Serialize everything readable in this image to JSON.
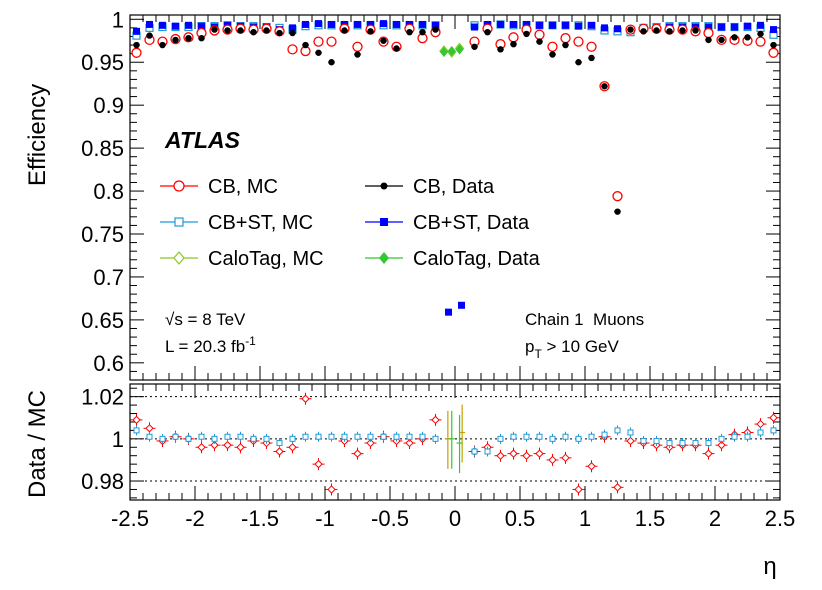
{
  "chart_data": {
    "type": "scatter",
    "title": "",
    "experiment_label": "ATLAS",
    "energy_label": "√s = 8 TeV",
    "lumi_label_main": "L = 20.3 fb",
    "lumi_label_sup": "-1",
    "chain_label": "Chain 1  Muons",
    "pt_label_p": "p",
    "pt_label_sub": "T",
    "pt_label_rest": " > 10 GeV",
    "xlabel": "η",
    "ylabel_top": "Efficiency",
    "ylabel_bottom": "Data / MC",
    "xlim": [
      -2.5,
      2.5
    ],
    "ylim_top": [
      0.58,
      1.005
    ],
    "ylim_bottom": [
      0.971,
      1.026
    ],
    "x_ticks": [
      -2.5,
      -2,
      -1.5,
      -1,
      -0.5,
      0,
      0.5,
      1,
      1.5,
      2,
      2.5
    ],
    "x_tick_labels": [
      "-2.5",
      "-2",
      "-1.5",
      "-1",
      "-0.5",
      "0",
      "0.5",
      "1",
      "1.5",
      "2",
      "2.5"
    ],
    "y_ticks_top": [
      0.6,
      0.65,
      0.7,
      0.75,
      0.8,
      0.85,
      0.9,
      0.95,
      1
    ],
    "y_tick_labels_top": [
      "0.6",
      "0.65",
      "0.7",
      "0.75",
      "0.8",
      "0.85",
      "0.9",
      "0.95",
      "1"
    ],
    "y_ticks_bottom": [
      0.98,
      1,
      1.02
    ],
    "y_tick_labels_bottom": [
      "0.98",
      "1",
      "1.02"
    ],
    "legend": [
      {
        "label": "CB, MC",
        "series": "cb_mc"
      },
      {
        "label": "CB, Data",
        "series": "cb_data"
      },
      {
        "label": "CB+ST, MC",
        "series": "cbst_mc"
      },
      {
        "label": "CB+ST, Data",
        "series": "cbst_data"
      },
      {
        "label": "CaloTag, MC",
        "series": "calo_mc"
      },
      {
        "label": "CaloTag, Data",
        "series": "calo_data"
      }
    ],
    "colors": {
      "cb_mc": "#ff0000",
      "cb_data": "#000000",
      "cbst_mc": "#1e9bd7",
      "cbst_data": "#0000ff",
      "calo_mc": "#8cc81e",
      "calo_data": "#32c832",
      "ratio_cb": "#ff0000",
      "ratio_cbst": "#1e9bd7",
      "ratio_calo_a": "#c8a000",
      "ratio_calo_b": "#32c832"
    },
    "x": [
      -2.45,
      -2.35,
      -2.25,
      -2.15,
      -2.05,
      -1.95,
      -1.85,
      -1.75,
      -1.65,
      -1.55,
      -1.45,
      -1.35,
      -1.25,
      -1.15,
      -1.05,
      -0.95,
      -0.85,
      -0.75,
      -0.65,
      -0.55,
      -0.45,
      -0.35,
      -0.25,
      -0.15,
      0.15,
      0.25,
      0.35,
      0.45,
      0.55,
      0.65,
      0.75,
      0.85,
      0.95,
      1.05,
      1.15,
      1.25,
      1.35,
      1.45,
      1.55,
      1.65,
      1.75,
      1.85,
      1.95,
      2.05,
      2.15,
      2.25,
      2.35,
      2.45
    ],
    "series": [
      {
        "name": "CB, MC",
        "key": "cb_mc",
        "values": [
          0.961,
          0.976,
          0.974,
          0.977,
          0.979,
          0.984,
          0.987,
          0.988,
          0.989,
          0.988,
          0.989,
          0.986,
          0.965,
          0.963,
          0.974,
          0.974,
          0.989,
          0.968,
          0.988,
          0.974,
          0.968,
          0.989,
          0.978,
          0.985,
          0.974,
          0.989,
          0.971,
          0.979,
          0.988,
          0.982,
          0.968,
          0.978,
          0.974,
          0.968,
          0.922,
          0.794,
          0.988,
          0.989,
          0.989,
          0.988,
          0.988,
          0.986,
          0.984,
          0.976,
          0.976,
          0.975,
          0.974,
          0.961
        ]
      },
      {
        "name": "CB, Data",
        "key": "cb_data",
        "values": [
          0.97,
          0.981,
          0.97,
          0.976,
          0.978,
          0.978,
          0.988,
          0.987,
          0.987,
          0.985,
          0.987,
          0.984,
          0.984,
          0.97,
          0.961,
          0.95,
          0.987,
          0.959,
          0.986,
          0.975,
          0.966,
          0.985,
          0.985,
          0.988,
          0.968,
          0.985,
          0.965,
          0.971,
          0.983,
          0.974,
          0.959,
          0.97,
          0.95,
          0.955,
          0.922,
          0.776,
          0.988,
          0.986,
          0.987,
          0.986,
          0.987,
          0.987,
          0.976,
          0.976,
          0.979,
          0.979,
          0.983,
          0.97
        ]
      },
      {
        "name": "CB+ST, MC",
        "key": "cbst_mc",
        "values": [
          0.981,
          0.99,
          0.991,
          0.991,
          0.991,
          0.992,
          0.992,
          0.993,
          0.992,
          0.992,
          0.991,
          0.99,
          0.988,
          0.992,
          0.993,
          0.993,
          0.993,
          0.993,
          0.993,
          0.993,
          0.993,
          0.993,
          0.993,
          0.993,
          0.993,
          0.993,
          0.994,
          0.993,
          0.993,
          0.993,
          0.993,
          0.993,
          0.993,
          0.992,
          0.987,
          0.986,
          0.985,
          0.99,
          0.991,
          0.992,
          0.992,
          0.992,
          0.992,
          0.991,
          0.991,
          0.991,
          0.99,
          0.982
        ]
      },
      {
        "name": "CB+ST, Data",
        "key": "cbst_data",
        "values": [
          0.986,
          0.994,
          0.993,
          0.992,
          0.993,
          0.992,
          0.991,
          0.993,
          0.992,
          0.991,
          0.991,
          0.988,
          0.99,
          0.994,
          0.995,
          0.994,
          0.994,
          0.994,
          0.994,
          0.995,
          0.994,
          0.994,
          0.994,
          0.993,
          0.991,
          0.994,
          0.994,
          0.994,
          0.994,
          0.993,
          0.993,
          0.993,
          0.992,
          0.993,
          0.99,
          0.989,
          0.988,
          0.989,
          0.99,
          0.991,
          0.991,
          0.991,
          0.991,
          0.991,
          0.991,
          0.992,
          0.993,
          0.988
        ]
      },
      {
        "name": "CaloTag, MC",
        "key": "calo_mc",
        "x": [
          -0.085,
          -0.025,
          0.035
        ],
        "values": [
          0.963,
          0.962,
          0.966
        ]
      },
      {
        "name": "CaloTag, Data",
        "key": "calo_data",
        "x": [
          -0.085,
          -0.025,
          0.035
        ],
        "values": [
          0.962,
          0.963,
          0.965
        ]
      },
      {
        "name": "CB+ST, Data (crack)",
        "key": "cbst_data",
        "x": [
          -0.05,
          0.05
        ],
        "values": [
          0.659,
          0.667
        ]
      }
    ],
    "ratio_series": [
      {
        "name": "CB ratio",
        "key": "ratio_cb",
        "values": [
          1.009,
          1.005,
          0.999,
          1.001,
          1.0,
          0.996,
          0.997,
          0.997,
          0.996,
          0.999,
          0.998,
          0.994,
          0.996,
          1.019,
          0.988,
          0.976,
          0.999,
          0.993,
          0.998,
          1.001,
          0.999,
          0.998,
          1.0,
          1.009,
          0.994,
          0.996,
          0.992,
          0.993,
          0.992,
          0.993,
          0.99,
          0.991,
          0.976,
          0.987,
          1.001,
          0.977,
          0.999,
          0.998,
          0.997,
          0.996,
          0.997,
          0.997,
          0.993,
          0.997,
          1.002,
          1.003,
          1.007,
          1.01
        ]
      },
      {
        "name": "CB+ST ratio",
        "key": "ratio_cbst",
        "values": [
          1.004,
          1.001,
          1.0,
          1.001,
          1.0,
          1.001,
          1.0,
          1.001,
          1.001,
          1.0,
          1.0,
          0.998,
          1.0,
          1.001,
          1.001,
          1.001,
          1.001,
          1.001,
          1.001,
          1.001,
          1.001,
          1.001,
          1.001,
          1.0,
          0.994,
          0.994,
          1.0,
          1.001,
          1.001,
          1.001,
          1.0,
          1.001,
          1.0,
          1.001,
          1.002,
          1.004,
          1.003,
          0.999,
          0.999,
          0.998,
          0.998,
          0.998,
          0.998,
          1.0,
          1.001,
          1.001,
          1.003,
          1.004
        ]
      },
      {
        "name": "CaloTag ratio A",
        "key": "ratio_calo_a",
        "x": [
          -0.055,
          0.055
        ],
        "values": [
          1.0,
          1.003
        ]
      },
      {
        "name": "CaloTag ratio B",
        "key": "ratio_calo_b",
        "x": [
          -0.025,
          0.035
        ],
        "values": [
          1.0,
          0.998
        ]
      }
    ],
    "reference_lines_bottom": [
      0.98,
      1,
      1.02
    ]
  }
}
